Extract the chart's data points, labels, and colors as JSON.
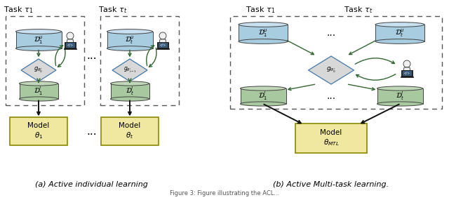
{
  "fig_width": 6.4,
  "fig_height": 2.85,
  "dpi": 100,
  "caption_a": "(a) Active individual learning",
  "caption_b": "(b) Active Multi-task learning.",
  "bg_color": "#ffffff",
  "db_blue_face": "#a8cce0",
  "db_blue_top": "#c8e0f0",
  "db_green_face": "#a8c8a0",
  "db_green_top": "#c0d8b8",
  "diamond_face": "#d8d8d8",
  "diamond_edge": "#4477aa",
  "model_face": "#f0e8a0",
  "model_edge": "#888800",
  "dashed_edge": "#555555",
  "arrow_green": "#336633",
  "arrow_black": "#111111",
  "label_tau1": "Task $\\tau_1$",
  "label_taut": "Task $\\tau_t$",
  "label_dots": "...",
  "label_D1u": "$\\mathcal{D}_1^u$",
  "label_Dtu": "$\\mathcal{D}_t^u$",
  "label_D1l": "$\\mathcal{D}_1^l$",
  "label_Dtl": "$\\mathcal{D}_t^l$",
  "label_g0": "$g_{\\theta_0^{\\prime}}$",
  "label_gt1": "$g_{\\theta_{t-1}^{\\prime}}$",
  "label_gb": "$g_{\\theta_0^{\\prime}}$",
  "label_model1": "Model\n$\\theta_1$",
  "label_modelt": "Model\n$\\theta_t$",
  "label_modelMTL": "Model\n$\\theta_{MTL}$"
}
